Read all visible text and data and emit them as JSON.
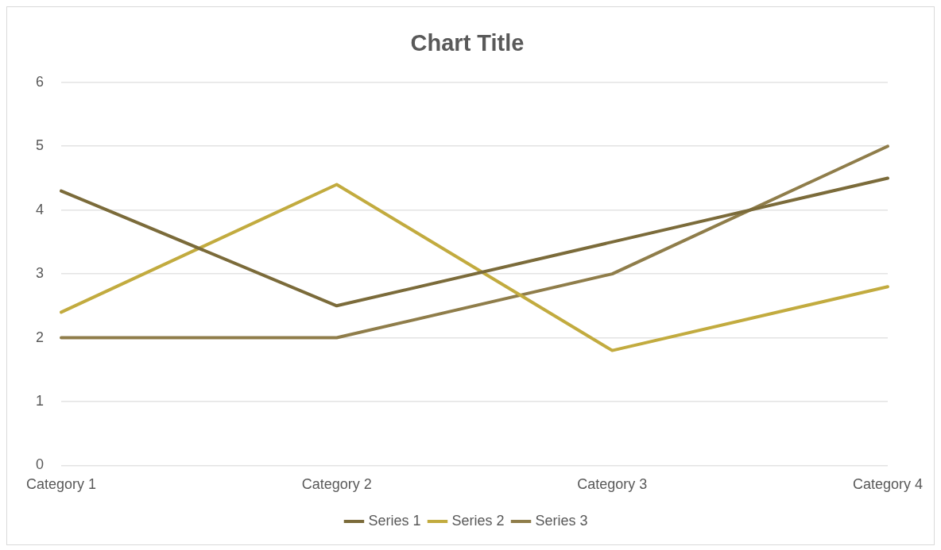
{
  "chart_data": {
    "type": "line",
    "title": "Chart Title",
    "categories": [
      "Category 1",
      "Category 2",
      "Category 3",
      "Category 4"
    ],
    "series": [
      {
        "name": "Series 1",
        "color": "#7b6b3a",
        "values": [
          4.3,
          2.5,
          3.5,
          4.5
        ]
      },
      {
        "name": "Series 2",
        "color": "#c2ab3f",
        "values": [
          2.4,
          4.4,
          1.8,
          2.8
        ]
      },
      {
        "name": "Series 3",
        "color": "#8f7d4a",
        "values": [
          2,
          2,
          3,
          5
        ]
      }
    ],
    "ylim": [
      0,
      6
    ],
    "yticks": [
      0,
      1,
      2,
      3,
      4,
      5,
      6
    ],
    "grid": "y",
    "legend": "bottom",
    "marker": "none",
    "line_style": "solid"
  }
}
